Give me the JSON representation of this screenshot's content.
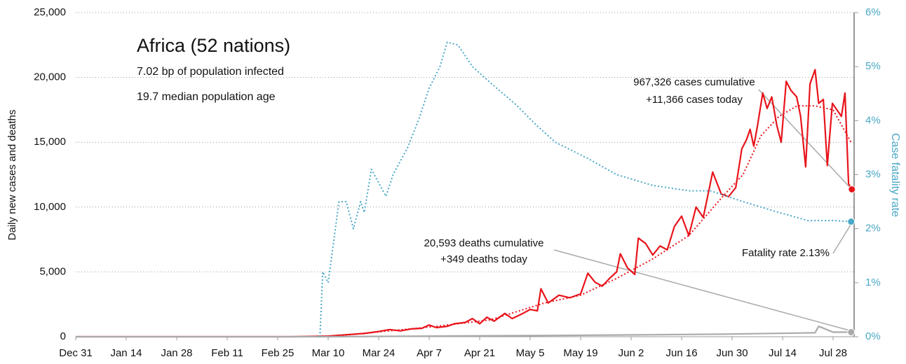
{
  "chart_data": {
    "type": "line",
    "title": "Africa (52 nations)",
    "subtitle": [
      "7.02 bp of population infected",
      "19.7 median population age"
    ],
    "ylabel": "Daily new cases and deaths",
    "y2label": "Case fatality rate",
    "xlim": [
      0,
      216
    ],
    "xticks": [
      {
        "value": 0,
        "label": "Dec 31"
      },
      {
        "value": 14,
        "label": "Jan 14"
      },
      {
        "value": 28,
        "label": "Jan 28"
      },
      {
        "value": 42,
        "label": "Feb 11"
      },
      {
        "value": 56,
        "label": "Feb 25"
      },
      {
        "value": 70,
        "label": "Mar 10"
      },
      {
        "value": 84,
        "label": "Mar 24"
      },
      {
        "value": 98,
        "label": "Apr 7"
      },
      {
        "value": 112,
        "label": "Apr 21"
      },
      {
        "value": 126,
        "label": "May 5"
      },
      {
        "value": 140,
        "label": "May 19"
      },
      {
        "value": 154,
        "label": "Jun 2"
      },
      {
        "value": 168,
        "label": "Jun 16"
      },
      {
        "value": 182,
        "label": "Jun 30"
      },
      {
        "value": 196,
        "label": "Jul 14"
      },
      {
        "value": 210,
        "label": "Jul 28"
      }
    ],
    "ylim": [
      0,
      25000
    ],
    "yticks": [
      0,
      {
        "value": 5000,
        "label": "5,000"
      },
      {
        "value": 10000,
        "label": "10,000"
      },
      {
        "value": 15000,
        "label": "15,000"
      },
      {
        "value": 20000,
        "label": "20,000"
      },
      {
        "value": 25000,
        "label": "25,000"
      }
    ],
    "y2lim": [
      0,
      6
    ],
    "y2ticks": [
      {
        "value": 0,
        "label": "0%"
      },
      {
        "value": 1,
        "label": "1%"
      },
      {
        "value": 2,
        "label": "2%"
      },
      {
        "value": 3,
        "label": "3%"
      },
      {
        "value": 4,
        "label": "4%"
      },
      {
        "value": 5,
        "label": "5%"
      },
      {
        "value": 6,
        "label": "6%"
      }
    ],
    "grid": true,
    "series": [
      {
        "color": "#e8141b",
        "style": "solid",
        "x": [
          0,
          60,
          70,
          75,
          80,
          84,
          87,
          90,
          93,
          96,
          98,
          100,
          103,
          105,
          108,
          110,
          112,
          114,
          116,
          119,
          121,
          124,
          126,
          128,
          129,
          131,
          134,
          137,
          140,
          142,
          144,
          146,
          148,
          150,
          151,
          153,
          155,
          156,
          158,
          160,
          162,
          164,
          166,
          168,
          170,
          172,
          174,
          176.6,
          179,
          181,
          183,
          184.7,
          186,
          187,
          188,
          189,
          190.5,
          191.7,
          193,
          194.4,
          195.6,
          197,
          198.3,
          199.9,
          201,
          202.4,
          203.6,
          205,
          206,
          207.3,
          208.4,
          209.8,
          212.3,
          213.3,
          214.3,
          215.2
        ],
        "values": [
          0,
          0,
          50,
          150,
          250,
          400,
          550,
          450,
          600,
          650,
          900,
          700,
          800,
          1000,
          1100,
          1400,
          1000,
          1500,
          1200,
          1800,
          1400,
          1800,
          2100,
          2000,
          3700,
          2600,
          3200,
          3000,
          3300,
          4900,
          4200,
          3900,
          4500,
          5000,
          6400,
          5300,
          4800,
          7600,
          7200,
          6300,
          7000,
          6700,
          8500,
          9300,
          7800,
          10000,
          9200,
          12700,
          11000,
          10800,
          11500,
          14500,
          15200,
          16000,
          14700,
          16200,
          18800,
          17600,
          18500,
          16300,
          15000,
          19700,
          19000,
          18500,
          17000,
          13100,
          19500,
          20600,
          18000,
          18300,
          13200,
          18000,
          17000,
          18800,
          11800,
          11366
        ]
      },
      {
        "color": "#e8141b",
        "style": "dotted",
        "x": [
          70,
          85,
          100,
          115,
          130,
          140,
          150,
          160,
          170,
          180,
          185,
          190,
          195,
          200,
          205,
          210,
          215
        ],
        "values": [
          0,
          400,
          800,
          1300,
          2600,
          3200,
          4500,
          6000,
          7800,
          11000,
          12500,
          15500,
          17000,
          17800,
          17800,
          17500,
          15000
        ]
      },
      {
        "color": "#aaaaaa",
        "style": "solid",
        "x": [
          0,
          70,
          100,
          130,
          160,
          180,
          200,
          205,
          206,
          210,
          215
        ],
        "values": [
          0,
          2,
          50,
          90,
          150,
          200,
          280,
          300,
          800,
          350,
          349
        ]
      },
      {
        "color": "#4aa8c8",
        "style": "dotted",
        "axis": "y2",
        "x": [
          67.7,
          68.5,
          70,
          73,
          75,
          77,
          79,
          80,
          82,
          86,
          88,
          92,
          95,
          98,
          101,
          103,
          106,
          110,
          115,
          122,
          128,
          133,
          142,
          150,
          160,
          170,
          176,
          185,
          195,
          203,
          210,
          215
        ],
        "values": [
          0,
          1.2,
          1.0,
          2.5,
          2.5,
          2.0,
          2.5,
          2.3,
          3.1,
          2.6,
          3.0,
          3.5,
          4.0,
          4.6,
          5.0,
          5.45,
          5.4,
          5.0,
          4.7,
          4.3,
          3.9,
          3.6,
          3.3,
          3.0,
          2.8,
          2.7,
          2.7,
          2.5,
          2.3,
          2.15,
          2.15,
          2.13
        ]
      }
    ],
    "annotations": [
      "967,326 cases cumulative",
      "+11,366 cases today",
      "20,593 deaths cumulative",
      "+349 deaths today",
      "Fatality rate 2.13%"
    ]
  }
}
